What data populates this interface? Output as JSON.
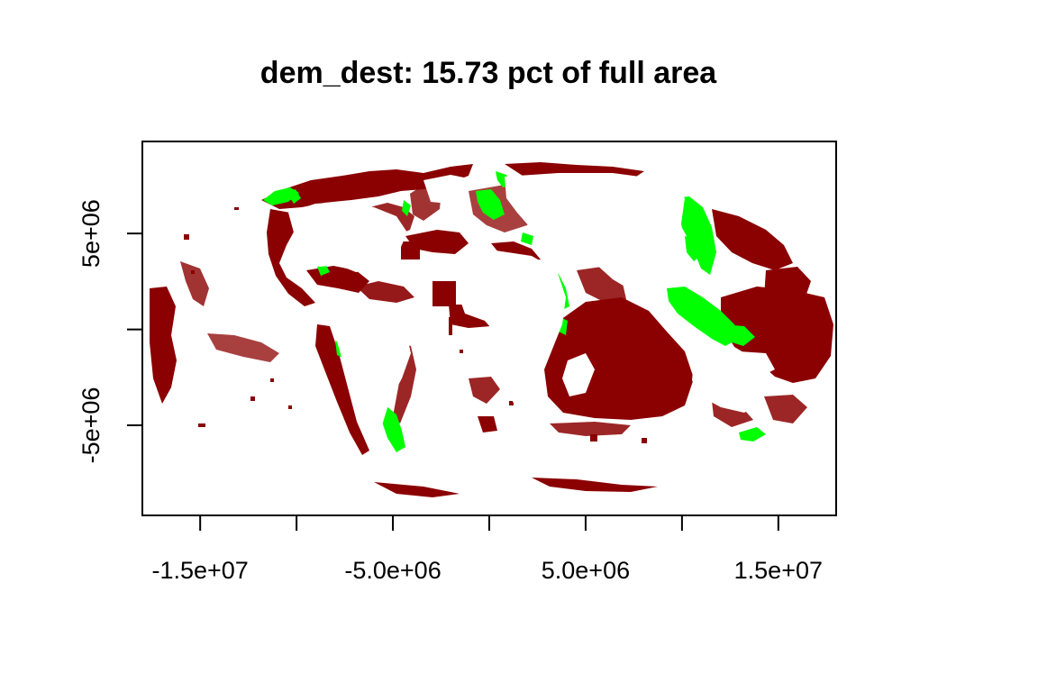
{
  "figure": {
    "title": "dem_dest: 15.73 pct of full area"
  },
  "colors": {
    "background": "#ffffff",
    "frame": "#000000",
    "cell_primary": "#8b0000",
    "cell_secondary": "#00ff00"
  },
  "axes": {
    "x_ticks": [
      {
        "value": -15000000.0,
        "label": "-1.5e+07"
      },
      {
        "value": -10000000.0,
        "label": ""
      },
      {
        "value": -5000000.0,
        "label": "-5.0e+06"
      },
      {
        "value": 0,
        "label": ""
      },
      {
        "value": 5000000.0,
        "label": "5.0e+06"
      },
      {
        "value": 10000000.0,
        "label": ""
      },
      {
        "value": 15000000.0,
        "label": "1.5e+07"
      }
    ],
    "y_ticks": [
      {
        "value": 5000000.0,
        "label": "5e+06"
      },
      {
        "value": 0,
        "label": ""
      },
      {
        "value": -5000000.0,
        "label": "-5e+06"
      }
    ],
    "x_range": [
      -18000000.0,
      18000000.0
    ],
    "y_range": [
      -9700000.0,
      9800000.0
    ]
  },
  "map": {
    "projection": "Mollweide-like world raster",
    "layers": [
      {
        "name": "red-cells",
        "color": "#8b0000"
      },
      {
        "name": "green-cells",
        "color": "#00ff00"
      }
    ]
  }
}
